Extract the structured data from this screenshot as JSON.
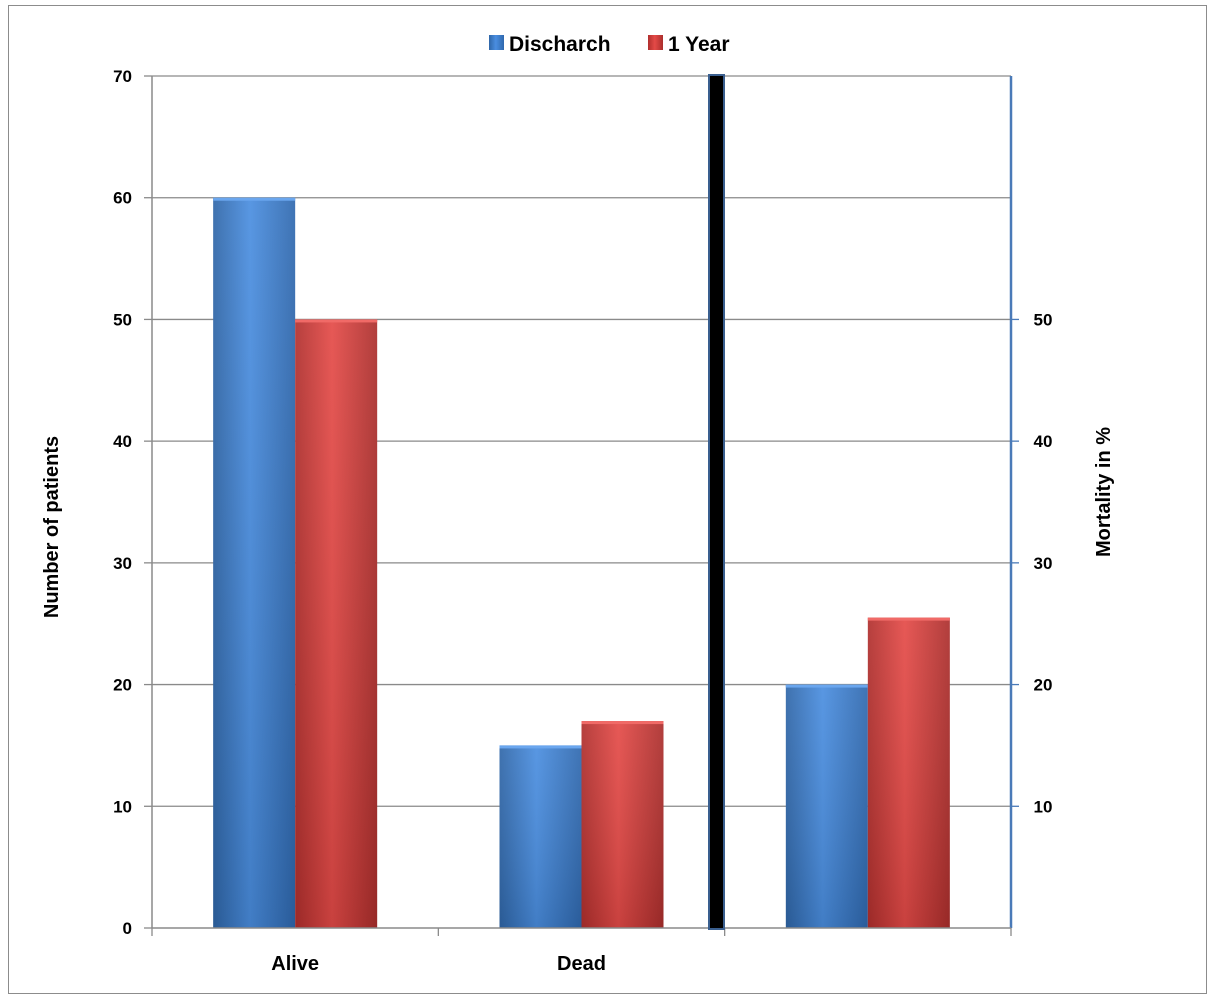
{
  "chart_data": {
    "type": "bar",
    "title": "",
    "categories": [
      "Alive",
      "Dead",
      ""
    ],
    "series": [
      {
        "name": "Discharch",
        "color": "#3b7cc9",
        "values": [
          60,
          15,
          20
        ]
      },
      {
        "name": "1 Year",
        "color": "#d43c3a",
        "values": [
          50,
          17,
          25.5
        ]
      }
    ],
    "ylabel": "Number of patients",
    "ylim": [
      0,
      70
    ],
    "yticks": [
      "0",
      "10",
      "20",
      "30",
      "40",
      "50",
      "60",
      "70"
    ],
    "y2label": "Mortality in %",
    "y2ticks": [
      "10",
      "20",
      "30",
      "40",
      "50"
    ],
    "legend_position": "top-center",
    "grid": true,
    "divider_color": "#000000"
  }
}
